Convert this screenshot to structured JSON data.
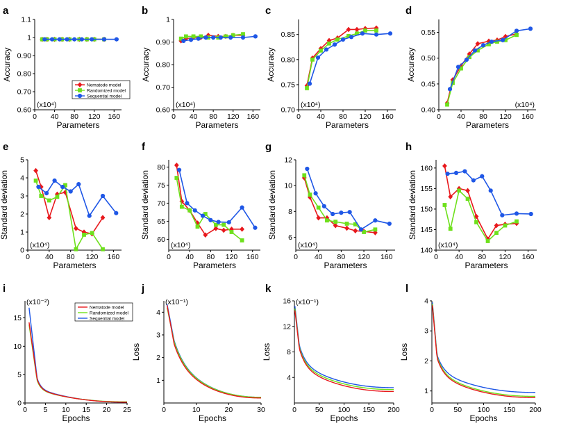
{
  "series_colors": {
    "nematode": "#e8181c",
    "randomized": "#6ee01c",
    "sequential": "#1f57e6"
  },
  "chart_data": [
    {
      "id": "a",
      "label": "a",
      "type": "line",
      "xlabel": "Parameters",
      "ylabel": "Accuracy",
      "xlim": [
        0,
        175
      ],
      "ylim": [
        0.6,
        1.1
      ],
      "xticks": [
        0,
        40,
        80,
        120,
        160
      ],
      "yticks": [
        0.6,
        0.7,
        0.8,
        0.9,
        1.0,
        1.1
      ],
      "sci": "(x10⁴)",
      "sci_pos": "bottom-left",
      "legend": {
        "position": "bottom-right",
        "entries": [
          "Nematode model",
          "Randomized model",
          "Sequential model"
        ]
      },
      "series": [
        {
          "name": "Nematode model",
          "key": "nematode",
          "marker": "diamond",
          "x": [
            15,
            25,
            40,
            55,
            70,
            90,
            105,
            120,
            140
          ],
          "y": [
            0.99,
            0.99,
            0.99,
            0.99,
            0.99,
            0.99,
            0.99,
            0.99,
            0.99
          ]
        },
        {
          "name": "Randomized model",
          "key": "randomized",
          "marker": "square",
          "x": [
            15,
            25,
            40,
            55,
            70,
            90,
            105,
            120,
            140
          ],
          "y": [
            0.99,
            0.99,
            0.99,
            0.99,
            0.99,
            0.99,
            0.99,
            0.99,
            0.99
          ]
        },
        {
          "name": "Sequential model",
          "key": "sequential",
          "marker": "circle",
          "x": [
            20,
            35,
            50,
            65,
            80,
            95,
            115,
            140,
            165
          ],
          "y": [
            0.99,
            0.99,
            0.99,
            0.99,
            0.99,
            0.99,
            0.99,
            0.99,
            0.99
          ]
        }
      ]
    },
    {
      "id": "b",
      "label": "b",
      "type": "line",
      "xlabel": "Parameters",
      "ylabel": "Accuracy",
      "xlim": [
        0,
        175
      ],
      "ylim": [
        0.6,
        1.0
      ],
      "xticks": [
        0,
        40,
        80,
        120,
        160
      ],
      "yticks": [
        0.6,
        0.7,
        0.8,
        0.9,
        1.0
      ],
      "sci": "(x10⁴)",
      "sci_pos": "bottom-left",
      "series": [
        {
          "name": "Nematode model",
          "key": "nematode",
          "marker": "diamond",
          "x": [
            15,
            25,
            40,
            55,
            70,
            90,
            105,
            120,
            140
          ],
          "y": [
            0.905,
            0.915,
            0.92,
            0.92,
            0.93,
            0.925,
            0.925,
            0.93,
            0.93
          ]
        },
        {
          "name": "Randomized model",
          "key": "randomized",
          "marker": "square",
          "x": [
            15,
            25,
            40,
            55,
            70,
            90,
            105,
            120,
            140
          ],
          "y": [
            0.915,
            0.925,
            0.925,
            0.925,
            0.92,
            0.92,
            0.925,
            0.93,
            0.935
          ]
        },
        {
          "name": "Sequential model",
          "key": "sequential",
          "marker": "circle",
          "x": [
            20,
            35,
            50,
            65,
            80,
            95,
            115,
            140,
            165
          ],
          "y": [
            0.905,
            0.91,
            0.915,
            0.92,
            0.92,
            0.92,
            0.92,
            0.92,
            0.925
          ]
        }
      ]
    },
    {
      "id": "c",
      "label": "c",
      "type": "line",
      "xlabel": "Parameters",
      "ylabel": "Accuracy",
      "xlim": [
        0,
        175
      ],
      "ylim": [
        0.7,
        0.88
      ],
      "xticks": [
        0,
        40,
        80,
        120,
        160
      ],
      "yticks": [
        0.7,
        0.75,
        0.8,
        0.85
      ],
      "sci": "(x10⁴)",
      "sci_pos": "bottom-left",
      "series": [
        {
          "name": "Nematode model",
          "key": "nematode",
          "marker": "diamond",
          "x": [
            15,
            25,
            40,
            55,
            70,
            90,
            105,
            120,
            140
          ],
          "y": [
            0.748,
            0.803,
            0.822,
            0.838,
            0.843,
            0.86,
            0.86,
            0.862,
            0.863
          ]
        },
        {
          "name": "Randomized model",
          "key": "randomized",
          "marker": "square",
          "x": [
            15,
            25,
            40,
            55,
            70,
            90,
            105,
            120,
            140
          ],
          "y": [
            0.743,
            0.8,
            0.818,
            0.832,
            0.84,
            0.847,
            0.852,
            0.858,
            0.858
          ]
        },
        {
          "name": "Sequential model",
          "key": "sequential",
          "marker": "circle",
          "x": [
            20,
            35,
            50,
            65,
            80,
            95,
            115,
            140,
            165
          ],
          "y": [
            0.752,
            0.804,
            0.82,
            0.83,
            0.84,
            0.845,
            0.852,
            0.85,
            0.852
          ]
        }
      ]
    },
    {
      "id": "d",
      "label": "d",
      "type": "line",
      "xlabel": "Parameters",
      "ylabel": "Accuracy",
      "xlim": [
        0,
        175
      ],
      "ylim": [
        0.4,
        0.575
      ],
      "xticks": [
        0,
        40,
        80,
        120,
        160
      ],
      "yticks": [
        0.4,
        0.45,
        0.5,
        0.55
      ],
      "sci": "(x10⁴)",
      "sci_pos": "bottom-right",
      "series": [
        {
          "name": "Nematode model",
          "key": "nematode",
          "marker": "diamond",
          "x": [
            15,
            25,
            40,
            55,
            70,
            90,
            105,
            120,
            140
          ],
          "y": [
            0.413,
            0.458,
            0.485,
            0.508,
            0.528,
            0.533,
            0.535,
            0.542,
            0.547
          ]
        },
        {
          "name": "Randomized model",
          "key": "randomized",
          "marker": "square",
          "x": [
            15,
            25,
            40,
            55,
            70,
            90,
            105,
            120,
            140
          ],
          "y": [
            0.41,
            0.452,
            0.48,
            0.502,
            0.515,
            0.527,
            0.532,
            0.535,
            0.545
          ]
        },
        {
          "name": "Sequential model",
          "key": "sequential",
          "marker": "circle",
          "x": [
            20,
            35,
            50,
            65,
            80,
            95,
            115,
            140,
            165
          ],
          "y": [
            0.44,
            0.483,
            0.497,
            0.515,
            0.525,
            0.532,
            0.535,
            0.553,
            0.557
          ]
        }
      ]
    },
    {
      "id": "e",
      "label": "e",
      "type": "line",
      "xlabel": "Parameters",
      "ylabel": "Standard deviation",
      "xlim": [
        0,
        175
      ],
      "ylim": [
        0,
        5
      ],
      "xticks": [
        0,
        40,
        80,
        120,
        160
      ],
      "yticks": [
        0,
        1,
        2,
        3,
        4,
        5
      ],
      "sci": "(x10⁴)",
      "sci_pos": "bottom-left",
      "series": [
        {
          "name": "Nematode model",
          "key": "nematode",
          "marker": "diamond",
          "x": [
            15,
            25,
            40,
            55,
            70,
            90,
            105,
            120,
            140
          ],
          "y": [
            4.4,
            3.5,
            1.8,
            3.1,
            3.2,
            1.2,
            1.0,
            0.9,
            1.8
          ]
        },
        {
          "name": "Randomized model",
          "key": "randomized",
          "marker": "square",
          "x": [
            15,
            25,
            40,
            55,
            70,
            90,
            105,
            120,
            140
          ],
          "y": [
            3.85,
            3.0,
            2.75,
            2.95,
            3.6,
            0.05,
            0.85,
            0.95,
            0.05
          ]
        },
        {
          "name": "Sequential model",
          "key": "sequential",
          "marker": "circle",
          "x": [
            20,
            35,
            50,
            65,
            80,
            95,
            115,
            140,
            165
          ],
          "y": [
            3.5,
            3.15,
            3.85,
            3.5,
            3.25,
            3.65,
            1.9,
            3.0,
            2.05
          ]
        }
      ]
    },
    {
      "id": "f",
      "label": "f",
      "type": "line",
      "xlabel": "Parameters",
      "ylabel": "Standard deviation",
      "xlim": [
        0,
        175
      ],
      "ylim": [
        57,
        82
      ],
      "xticks": [
        0,
        40,
        80,
        120,
        160
      ],
      "yticks": [
        60,
        65,
        70,
        75,
        80
      ],
      "sci": "(x10⁴)",
      "sci_pos": "bottom-left",
      "series": [
        {
          "name": "Nematode model",
          "key": "nematode",
          "marker": "diamond",
          "x": [
            15,
            25,
            40,
            55,
            70,
            90,
            105,
            120,
            140
          ],
          "y": [
            80.5,
            70.5,
            68.0,
            64.5,
            61.2,
            63.0,
            62.5,
            62.8,
            62.8
          ]
        },
        {
          "name": "Randomized model",
          "key": "randomized",
          "marker": "square",
          "x": [
            15,
            25,
            40,
            55,
            70,
            90,
            105,
            120,
            140
          ],
          "y": [
            77.0,
            69.0,
            68.0,
            63.5,
            67.0,
            64.0,
            64.0,
            62.0,
            59.7
          ]
        },
        {
          "name": "Sequential model",
          "key": "sequential",
          "marker": "circle",
          "x": [
            20,
            35,
            50,
            65,
            80,
            95,
            115,
            140,
            165
          ],
          "y": [
            79.2,
            70.0,
            68.0,
            66.5,
            65.3,
            64.8,
            64.7,
            68.8,
            63.2
          ]
        }
      ]
    },
    {
      "id": "g",
      "label": "g",
      "type": "line",
      "xlabel": "Parameters",
      "ylabel": "Standard deviation",
      "xlim": [
        0,
        175
      ],
      "ylim": [
        5,
        12
      ],
      "xticks": [
        0,
        40,
        80,
        120,
        160
      ],
      "yticks": [
        6,
        8,
        10,
        12
      ],
      "sci": "(x10⁴)",
      "sci_pos": "bottom-left",
      "series": [
        {
          "name": "Nematode model",
          "key": "nematode",
          "marker": "diamond",
          "x": [
            15,
            25,
            40,
            55,
            70,
            90,
            105,
            120,
            140
          ],
          "y": [
            10.6,
            9.1,
            7.5,
            7.5,
            6.9,
            6.7,
            6.5,
            6.45,
            6.35
          ]
        },
        {
          "name": "Randomized model",
          "key": "randomized",
          "marker": "square",
          "x": [
            15,
            25,
            40,
            55,
            70,
            90,
            105,
            120,
            140
          ],
          "y": [
            10.8,
            9.3,
            8.3,
            7.3,
            7.2,
            7.05,
            7.0,
            6.4,
            6.6
          ]
        },
        {
          "name": "Sequential model",
          "key": "sequential",
          "marker": "circle",
          "x": [
            20,
            35,
            50,
            65,
            80,
            95,
            115,
            140,
            165
          ],
          "y": [
            11.3,
            9.4,
            8.4,
            7.8,
            7.9,
            7.95,
            6.6,
            7.3,
            7.05
          ]
        }
      ]
    },
    {
      "id": "h",
      "label": "h",
      "type": "line",
      "xlabel": "Parameters",
      "ylabel": "Standard deviation",
      "xlim": [
        0,
        175
      ],
      "ylim": [
        140,
        162
      ],
      "xticks": [
        0,
        40,
        80,
        120,
        160
      ],
      "yticks": [
        140,
        145,
        150,
        155,
        160
      ],
      "sci": "(x10⁴)",
      "sci_pos": "bottom-left",
      "series": [
        {
          "name": "Nematode model",
          "key": "nematode",
          "marker": "diamond",
          "x": [
            15,
            25,
            40,
            55,
            70,
            90,
            105,
            120,
            140
          ],
          "y": [
            160.5,
            153.0,
            155.0,
            154.5,
            148.2,
            142.7,
            146.0,
            146.3,
            146.5
          ]
        },
        {
          "name": "Randomized model",
          "key": "randomized",
          "marker": "square",
          "x": [
            15,
            25,
            40,
            55,
            70,
            90,
            105,
            120,
            140
          ],
          "y": [
            151.0,
            145.2,
            154.5,
            152.5,
            146.8,
            142.2,
            144.2,
            146.0,
            147.0
          ]
        },
        {
          "name": "Sequential model",
          "key": "sequential",
          "marker": "circle",
          "x": [
            20,
            35,
            50,
            65,
            80,
            95,
            115,
            140,
            165
          ],
          "y": [
            158.6,
            158.8,
            159.2,
            157.0,
            158.0,
            154.5,
            148.5,
            148.9,
            148.8
          ]
        }
      ]
    },
    {
      "id": "i",
      "label": "i",
      "type": "line",
      "xlabel": "Epochs",
      "ylabel": "Loss",
      "xlim": [
        0,
        25
      ],
      "ylim": [
        0,
        18
      ],
      "xticks": [
        0,
        5,
        10,
        15,
        20,
        25
      ],
      "yticks": [
        0,
        5,
        10,
        15
      ],
      "sci": "(x10⁻²)",
      "sci_pos": "top-left",
      "legend": {
        "position": "top-right",
        "entries": [
          "Nematode model",
          "Randomized model",
          "Sequential model"
        ]
      },
      "curve": {
        "x0": 1,
        "x1": 25,
        "y_end": {
          "nematode": 0.15,
          "randomized": 0.2,
          "sequential": 0.15
        },
        "y_start": {
          "nematode": 14.2,
          "randomized": 13.8,
          "sequential": 16.8
        },
        "knee": {
          "nematode": 4.2,
          "randomized": 4.0,
          "sequential": 4.4
        },
        "decay": 0.35
      }
    },
    {
      "id": "j",
      "label": "j",
      "type": "line",
      "xlabel": "Epochs",
      "ylabel": "Loss",
      "xlim": [
        0,
        30
      ],
      "ylim": [
        0,
        4.5
      ],
      "xticks": [
        0,
        10,
        20,
        30
      ],
      "yticks": [
        1,
        2,
        3,
        4
      ],
      "sci": "(x10⁻¹)",
      "sci_pos": "top-left",
      "curve": {
        "x0": 1,
        "x1": 30,
        "y_end": {
          "nematode": 0.22,
          "randomized": 0.25,
          "sequential": 0.25
        },
        "y_start": {
          "nematode": 4.3,
          "randomized": 4.2,
          "sequential": 4.35
        },
        "knee": {
          "nematode": 2.6,
          "randomized": 2.7,
          "sequential": 2.75
        },
        "decay": 0.1
      }
    },
    {
      "id": "k",
      "label": "k",
      "type": "line",
      "xlabel": "Epochs",
      "ylabel": "Loss",
      "xlim": [
        0,
        200
      ],
      "ylim": [
        0,
        16
      ],
      "xticks": [
        0,
        50,
        100,
        150,
        200
      ],
      "yticks": [
        4,
        8,
        12,
        16
      ],
      "sci": "(x10⁻¹)",
      "sci_pos": "top-left",
      "curve": {
        "x0": 1,
        "x1": 200,
        "y_end": {
          "nematode": 1.8,
          "randomized": 2.1,
          "sequential": 2.4
        },
        "y_start": {
          "nematode": 14.5,
          "randomized": 14.8,
          "sequential": 15.2
        },
        "knee": {
          "nematode": 8.5,
          "randomized": 8.7,
          "sequential": 9.0
        },
        "decay": 0.025
      }
    },
    {
      "id": "l",
      "label": "l",
      "type": "line",
      "xlabel": "Epochs",
      "ylabel": "Loss",
      "xlim": [
        0,
        200
      ],
      "ylim": [
        0.6,
        4
      ],
      "xticks": [
        0,
        50,
        100,
        150,
        200
      ],
      "yticks": [
        1,
        2,
        3,
        4
      ],
      "sci": "",
      "sci_pos": "top-left",
      "curve": {
        "x0": 1,
        "x1": 200,
        "y_end": {
          "nematode": 0.78,
          "randomized": 0.82,
          "sequential": 0.95
        },
        "y_start": {
          "nematode": 3.85,
          "randomized": 3.9,
          "sequential": 3.95
        },
        "knee": {
          "nematode": 2.1,
          "randomized": 2.15,
          "sequential": 2.2
        },
        "decay": 0.025
      }
    }
  ]
}
